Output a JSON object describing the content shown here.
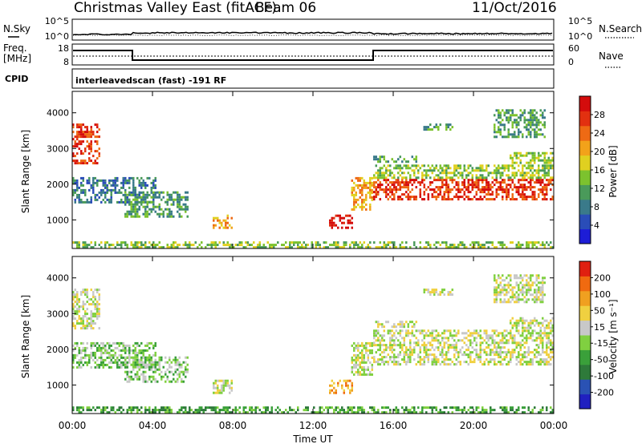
{
  "header": {
    "title": "Christmas Valley East (fitACF)",
    "beam": "Beam 06",
    "date": "11/Oct/2016"
  },
  "noise_panel": {
    "left_label": "N.Sky",
    "right_label": "N.Search",
    "left_ticks": [
      "10^5",
      "10^0"
    ],
    "right_ticks": [
      "10^5",
      "10^0"
    ]
  },
  "freq_panel": {
    "left_label_1": "Freq.",
    "left_label_2": "[MHz]",
    "right_label": "Nave",
    "left_ticks": [
      "18",
      "8"
    ],
    "right_ticks": [
      "60",
      "0"
    ],
    "cpid_label": "CPID",
    "cpid_text": "interleavedscan (fast) -191 RF"
  },
  "chart_data": [
    {
      "type": "heatmap",
      "title": "Power",
      "ylabel": "Slant Range [km]",
      "y_ticks": [
        1000,
        2000,
        3000,
        4000
      ],
      "ylim": [
        200,
        4600
      ],
      "xlim": [
        0,
        24
      ],
      "colorbar": {
        "label": "Power [dB]",
        "ticks": [
          "4",
          "8",
          "12",
          "16",
          "20",
          "24",
          "28"
        ],
        "colors": [
          "#1d1dd6",
          "#2a4db8",
          "#3a7a8a",
          "#4a9a5a",
          "#7cc22e",
          "#e0d020",
          "#f2a21a",
          "#ee6a14",
          "#e23010",
          "#d40c0c"
        ]
      },
      "regions": [
        {
          "t0": 0.0,
          "t1": 1.4,
          "r0": 2600,
          "r1": 3700,
          "level": 8
        },
        {
          "t0": 0.0,
          "t1": 4.2,
          "r0": 1500,
          "r1": 2200,
          "level": 2
        },
        {
          "t0": 2.6,
          "t1": 5.8,
          "r0": 1100,
          "r1": 1800,
          "level": 3
        },
        {
          "t0": 7.0,
          "t1": 8.0,
          "r0": 750,
          "r1": 1150,
          "level": 6
        },
        {
          "t0": 12.8,
          "t1": 14.0,
          "r0": 750,
          "r1": 1150,
          "level": 9
        },
        {
          "t0": 13.9,
          "t1": 15.0,
          "r0": 1300,
          "r1": 2200,
          "level": 6
        },
        {
          "t0": 15.0,
          "t1": 24.0,
          "r0": 1550,
          "r1": 2150,
          "level": 8
        },
        {
          "t0": 15.0,
          "t1": 24.0,
          "r0": 2200,
          "r1": 2550,
          "level": 4
        },
        {
          "t0": 15.0,
          "t1": 17.2,
          "r0": 2600,
          "r1": 2800,
          "level": 3
        },
        {
          "t0": 21.8,
          "t1": 24.0,
          "r0": 2600,
          "r1": 2900,
          "level": 4
        },
        {
          "t0": 17.5,
          "t1": 19.0,
          "r0": 3500,
          "r1": 3700,
          "level": 3
        },
        {
          "t0": 21.0,
          "t1": 23.6,
          "r0": 3300,
          "r1": 4100,
          "level": 3
        },
        {
          "t0": 0.0,
          "t1": 24.0,
          "r0": 200,
          "r1": 400,
          "level": 4
        }
      ]
    },
    {
      "type": "heatmap",
      "title": "Velocity",
      "ylabel": "Slant Range [km]",
      "xlabel": "Time UT",
      "x_ticks": [
        "00:00",
        "04:00",
        "08:00",
        "12:00",
        "16:00",
        "20:00",
        "00:00"
      ],
      "y_ticks": [
        1000,
        2000,
        3000,
        4000
      ],
      "ylim": [
        200,
        4600
      ],
      "xlim": [
        0,
        24
      ],
      "colorbar": {
        "label": "Velocity [m s⁻¹]",
        "ticks": [
          "200",
          "100",
          "50",
          "15",
          "-15",
          "-50",
          "-100",
          "-200"
        ],
        "colors": [
          "#2020c0",
          "#2a52b4",
          "#2e7a3a",
          "#3aa03a",
          "#80d040",
          "#c8c8c8",
          "#f0d040",
          "#f0a020",
          "#f06a10",
          "#e02010"
        ]
      },
      "regions": [
        {
          "t0": 0.0,
          "t1": 1.4,
          "r0": 2600,
          "r1": 3700,
          "level": 5
        },
        {
          "t0": 0.0,
          "t1": 4.2,
          "r0": 1500,
          "r1": 2200,
          "level": 4
        },
        {
          "t0": 2.6,
          "t1": 5.8,
          "r0": 1100,
          "r1": 1800,
          "level": 4
        },
        {
          "t0": 7.0,
          "t1": 8.0,
          "r0": 750,
          "r1": 1150,
          "level": 5
        },
        {
          "t0": 12.8,
          "t1": 14.0,
          "r0": 750,
          "r1": 1150,
          "level": 7
        },
        {
          "t0": 13.9,
          "t1": 15.0,
          "r0": 1300,
          "r1": 2200,
          "level": 5
        },
        {
          "t0": 15.0,
          "t1": 24.0,
          "r0": 1550,
          "r1": 2150,
          "level": 5
        },
        {
          "t0": 15.0,
          "t1": 24.0,
          "r0": 2200,
          "r1": 2550,
          "level": 5
        },
        {
          "t0": 15.0,
          "t1": 17.2,
          "r0": 2600,
          "r1": 2800,
          "level": 5
        },
        {
          "t0": 21.8,
          "t1": 24.0,
          "r0": 2600,
          "r1": 2900,
          "level": 5
        },
        {
          "t0": 17.5,
          "t1": 19.0,
          "r0": 3500,
          "r1": 3700,
          "level": 5
        },
        {
          "t0": 21.0,
          "t1": 23.6,
          "r0": 3300,
          "r1": 4100,
          "level": 5
        },
        {
          "t0": 0.0,
          "t1": 24.0,
          "r0": 200,
          "r1": 400,
          "level": 3
        }
      ]
    }
  ]
}
